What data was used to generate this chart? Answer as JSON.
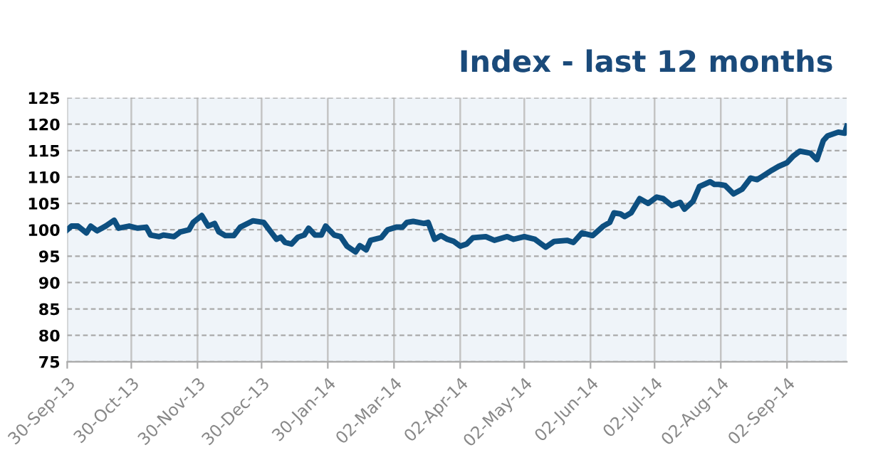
{
  "chart_data": {
    "type": "line",
    "title": "Index - last 12 months",
    "x": [
      "2013-09-30",
      "2013-10-02",
      "2013-10-05",
      "2013-10-09",
      "2013-10-11",
      "2013-10-14",
      "2013-10-18",
      "2013-10-22",
      "2013-10-24",
      "2013-10-29",
      "2013-11-02",
      "2013-11-06",
      "2013-11-08",
      "2013-11-12",
      "2013-11-14",
      "2013-11-19",
      "2013-11-22",
      "2013-11-26",
      "2013-11-28",
      "2013-12-02",
      "2013-12-05",
      "2013-12-08",
      "2013-12-10",
      "2013-12-13",
      "2013-12-17",
      "2013-12-20",
      "2013-12-26",
      "2013-12-31",
      "2014-01-06",
      "2014-01-08",
      "2014-01-10",
      "2014-01-13",
      "2014-01-16",
      "2014-01-19",
      "2014-01-21",
      "2014-01-24",
      "2014-01-27",
      "2014-01-29",
      "2014-02-02",
      "2014-02-05",
      "2014-02-08",
      "2014-02-12",
      "2014-02-14",
      "2014-02-17",
      "2014-02-19",
      "2014-02-24",
      "2014-02-27",
      "2014-03-03",
      "2014-03-06",
      "2014-03-08",
      "2014-03-11",
      "2014-03-16",
      "2014-03-18",
      "2014-03-21",
      "2014-03-24",
      "2014-03-27",
      "2014-03-30",
      "2014-04-02",
      "2014-04-05",
      "2014-04-08",
      "2014-04-14",
      "2014-04-18",
      "2014-04-24",
      "2014-04-27",
      "2014-05-02",
      "2014-05-07",
      "2014-05-12",
      "2014-05-16",
      "2014-05-22",
      "2014-05-25",
      "2014-05-29",
      "2014-06-03",
      "2014-06-08",
      "2014-06-11",
      "2014-06-13",
      "2014-06-16",
      "2014-06-18",
      "2014-06-21",
      "2014-06-25",
      "2014-06-29",
      "2014-07-03",
      "2014-07-06",
      "2014-07-10",
      "2014-07-14",
      "2014-07-16",
      "2014-07-20",
      "2014-07-23",
      "2014-07-28",
      "2014-07-30",
      "2014-08-01",
      "2014-08-04",
      "2014-08-08",
      "2014-08-12",
      "2014-08-16",
      "2014-08-19",
      "2014-08-21",
      "2014-08-26",
      "2014-08-29",
      "2014-09-02",
      "2014-09-05",
      "2014-09-08",
      "2014-09-13",
      "2014-09-16",
      "2014-09-19",
      "2014-09-21",
      "2014-09-26",
      "2014-09-29",
      "2014-09-30"
    ],
    "series": [
      {
        "color": "#0d4f80",
        "values": [
          100.0,
          100.7,
          100.7,
          99.4,
          100.7,
          99.8,
          100.7,
          101.8,
          100.3,
          100.7,
          100.3,
          100.5,
          99.0,
          98.7,
          99.0,
          98.7,
          99.6,
          100.0,
          101.4,
          102.7,
          100.7,
          101.2,
          99.6,
          98.9,
          98.9,
          100.5,
          101.7,
          101.4,
          98.2,
          98.6,
          97.6,
          97.3,
          98.6,
          99.0,
          100.3,
          99.0,
          99.0,
          100.7,
          99.0,
          98.7,
          96.9,
          95.8,
          97.0,
          96.2,
          98.0,
          98.5,
          100.0,
          100.5,
          100.5,
          101.4,
          101.6,
          101.2,
          101.4,
          98.2,
          98.9,
          98.2,
          97.8,
          96.9,
          97.3,
          98.5,
          98.7,
          98.0,
          98.7,
          98.2,
          98.7,
          98.2,
          96.7,
          97.8,
          98.0,
          97.6,
          99.4,
          98.9,
          100.7,
          101.4,
          103.2,
          103.0,
          102.5,
          103.2,
          105.9,
          105.0,
          106.2,
          105.9,
          104.6,
          105.2,
          103.9,
          105.4,
          108.2,
          109.1,
          108.6,
          108.6,
          108.4,
          106.8,
          107.7,
          109.8,
          109.5,
          110.0,
          111.3,
          112.0,
          112.7,
          114.0,
          114.9,
          114.5,
          113.3,
          116.9,
          117.8,
          118.5,
          118.3,
          119.6
        ]
      }
    ],
    "xlim": [
      "2013-09-30",
      "2014-09-30"
    ],
    "xticks": [
      {
        "value": "2013-09-30",
        "label": "30-Sep-13"
      },
      {
        "value": "2013-10-30",
        "label": "30-Oct-13"
      },
      {
        "value": "2013-11-30",
        "label": "30-Nov-13"
      },
      {
        "value": "2013-12-30",
        "label": "30-Dec-13"
      },
      {
        "value": "2014-01-30",
        "label": "30-Jan-14"
      },
      {
        "value": "2014-03-02",
        "label": "02-Mar-14"
      },
      {
        "value": "2014-04-02",
        "label": "02-Apr-14"
      },
      {
        "value": "2014-05-02",
        "label": "02-May-14"
      },
      {
        "value": "2014-06-02",
        "label": "02-Jun-14"
      },
      {
        "value": "2014-07-02",
        "label": "02-Jul-14"
      },
      {
        "value": "2014-08-02",
        "label": "02-Aug-14"
      },
      {
        "value": "2014-09-02",
        "label": "02-Sep-14"
      }
    ],
    "ylim": [
      75,
      125
    ],
    "yticks": [
      75,
      80,
      85,
      90,
      95,
      100,
      105,
      110,
      115,
      120,
      125
    ],
    "grid": true,
    "marker": "none",
    "line_style": "solid"
  }
}
